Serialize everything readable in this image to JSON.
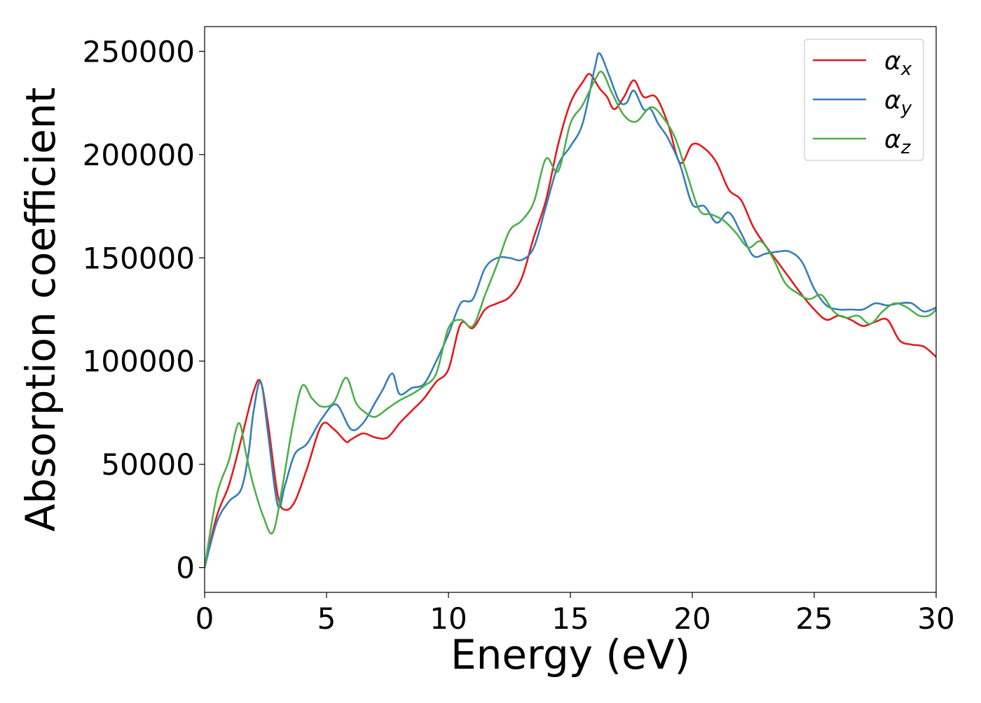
{
  "chart_data": {
    "type": "line",
    "title": "",
    "xlabel": "Energy (eV)",
    "ylabel": "Absorption coefficient",
    "xlim": [
      0,
      30
    ],
    "ylim": [
      -12000,
      262000
    ],
    "x_ticks": [
      0,
      5,
      10,
      15,
      20,
      25,
      30
    ],
    "x_tick_labels": [
      "0",
      "5",
      "10",
      "15",
      "20",
      "25",
      "30"
    ],
    "y_ticks": [
      0,
      50000,
      100000,
      150000,
      200000,
      250000
    ],
    "y_tick_labels": [
      "0",
      "50000",
      "100000",
      "150000",
      "200000",
      "250000"
    ],
    "grid": false,
    "legend_position": "top-right",
    "series": [
      {
        "name": "αx",
        "legend_base": "α",
        "legend_sub": "x",
        "color": "#e41a1c",
        "x": [
          0,
          0.5,
          1.0,
          1.5,
          2.0,
          2.3,
          2.6,
          3.0,
          3.3,
          3.7,
          4.2,
          4.8,
          5.3,
          5.8,
          6.0,
          6.5,
          7.0,
          7.5,
          8.0,
          8.5,
          9.0,
          9.5,
          10.0,
          10.5,
          11.0,
          11.5,
          12.0,
          12.5,
          13.0,
          13.5,
          14.0,
          14.5,
          15.0,
          15.5,
          15.8,
          16.2,
          16.5,
          16.8,
          17.2,
          17.6,
          18.0,
          18.5,
          19.0,
          19.5,
          20.0,
          20.5,
          21.0,
          21.5,
          22.0,
          22.5,
          23.0,
          23.5,
          24.0,
          24.5,
          25.0,
          25.5,
          26.0,
          26.5,
          27.0,
          27.5,
          28.0,
          28.5,
          29.0,
          29.5,
          30.0
        ],
        "values": [
          0,
          25000,
          40000,
          62000,
          85000,
          90000,
          70000,
          35000,
          28000,
          32000,
          48000,
          69000,
          67000,
          61000,
          62000,
          65000,
          63000,
          63000,
          70000,
          76000,
          82000,
          90000,
          96000,
          118000,
          116000,
          125000,
          128000,
          131000,
          140000,
          160000,
          178000,
          205000,
          225000,
          235000,
          239000,
          232000,
          228000,
          222000,
          228000,
          236000,
          228000,
          228000,
          215000,
          196000,
          205000,
          203000,
          196000,
          183000,
          178000,
          165000,
          156000,
          148000,
          140000,
          132000,
          125000,
          120000,
          122000,
          120000,
          117000,
          119000,
          120000,
          110000,
          108000,
          107000,
          102000
        ]
      },
      {
        "name": "αy",
        "legend_base": "α",
        "legend_sub": "y",
        "color": "#377eb8",
        "x": [
          0,
          0.5,
          1.0,
          1.5,
          1.8,
          2.0,
          2.3,
          2.6,
          3.0,
          3.3,
          3.7,
          4.2,
          4.8,
          5.4,
          6.0,
          6.5,
          7.0,
          7.3,
          7.7,
          8.0,
          8.5,
          9.0,
          9.5,
          10.0,
          10.5,
          11.0,
          11.5,
          12.0,
          12.5,
          13.0,
          13.5,
          14.0,
          14.5,
          15.0,
          15.5,
          16.0,
          16.2,
          16.6,
          17.0,
          17.3,
          17.6,
          18.0,
          18.3,
          18.6,
          19.0,
          19.5,
          20.0,
          20.5,
          21.0,
          21.5,
          22.0,
          22.5,
          23.0,
          23.5,
          24.0,
          24.5,
          25.0,
          25.5,
          26.0,
          26.5,
          27.0,
          27.5,
          28.0,
          28.5,
          29.0,
          29.5,
          30.0
        ],
        "values": [
          0,
          22000,
          32000,
          38000,
          55000,
          75000,
          90000,
          65000,
          30000,
          40000,
          55000,
          60000,
          72000,
          79000,
          67000,
          70000,
          80000,
          86000,
          94000,
          84000,
          87000,
          89000,
          100000,
          113000,
          128000,
          130000,
          145000,
          150000,
          150000,
          149000,
          155000,
          175000,
          195000,
          204000,
          215000,
          242000,
          249000,
          238000,
          226000,
          225000,
          231000,
          222000,
          222000,
          215000,
          208000,
          195000,
          176000,
          175000,
          167000,
          172000,
          162000,
          151000,
          152000,
          153000,
          153000,
          148000,
          135000,
          127000,
          125000,
          125000,
          125000,
          128000,
          127000,
          128000,
          128000,
          124000,
          126000
        ]
      },
      {
        "name": "αz",
        "legend_base": "α",
        "legend_sub": "z",
        "color": "#4daf4a",
        "x": [
          0,
          0.5,
          1.0,
          1.4,
          1.7,
          2.0,
          2.4,
          2.8,
          3.2,
          3.6,
          4.0,
          4.4,
          4.8,
          5.3,
          5.8,
          6.2,
          6.6,
          7.0,
          7.5,
          8.0,
          8.5,
          9.0,
          9.5,
          10.0,
          10.5,
          11.0,
          11.5,
          12.0,
          12.5,
          13.0,
          13.5,
          14.0,
          14.5,
          15.0,
          15.5,
          16.0,
          16.3,
          16.7,
          17.2,
          17.7,
          18.3,
          18.8,
          19.3,
          19.8,
          20.3,
          20.8,
          21.3,
          21.8,
          22.3,
          22.8,
          23.3,
          23.8,
          24.3,
          24.8,
          25.3,
          25.8,
          26.3,
          26.8,
          27.3,
          27.8,
          28.3,
          28.8,
          29.3,
          29.7,
          30.0
        ],
        "values": [
          0,
          35000,
          52000,
          70000,
          55000,
          40000,
          25000,
          17000,
          40000,
          68000,
          88000,
          82000,
          78000,
          80000,
          92000,
          80000,
          75000,
          73000,
          77000,
          81000,
          84000,
          88000,
          94000,
          116000,
          120000,
          117000,
          132000,
          147000,
          163000,
          168000,
          177000,
          198000,
          192000,
          215000,
          224000,
          236000,
          240000,
          230000,
          219000,
          216000,
          223000,
          218000,
          208000,
          190000,
          173000,
          171000,
          168000,
          162000,
          155000,
          158000,
          150000,
          138000,
          133000,
          130000,
          132000,
          124000,
          121000,
          122000,
          118000,
          124000,
          128000,
          126000,
          122000,
          122000,
          125000
        ]
      }
    ]
  }
}
